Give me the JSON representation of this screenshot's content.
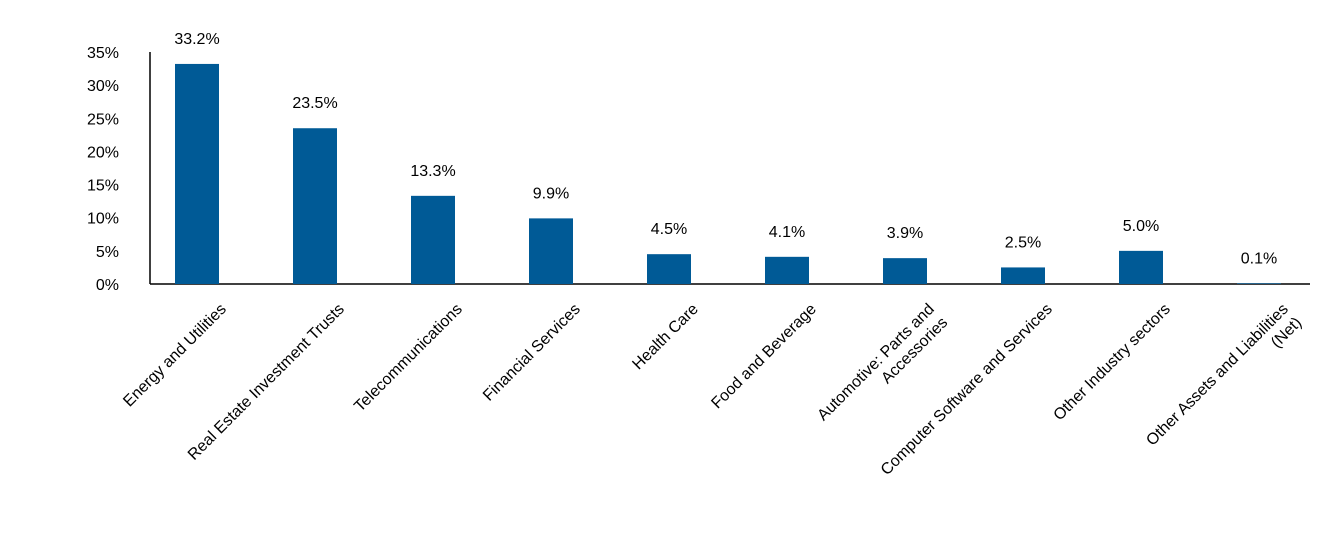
{
  "chart_data": {
    "type": "bar",
    "title": "",
    "xlabel": "",
    "ylabel": "",
    "ylim": [
      0,
      35
    ],
    "y_ticks": [
      "0%",
      "5%",
      "10%",
      "15%",
      "20%",
      "25%",
      "30%",
      "35%"
    ],
    "y_tick_values": [
      0,
      5,
      10,
      15,
      20,
      25,
      30,
      35
    ],
    "grid": false,
    "bar_color": "#005A96",
    "categories": [
      [
        "Energy and Utilities"
      ],
      [
        "Real Estate Investment Trusts"
      ],
      [
        "Telecommunications"
      ],
      [
        "Financial Services"
      ],
      [
        "Health Care"
      ],
      [
        "Food and Beverage"
      ],
      [
        "Automotive: Parts and",
        "Accessories"
      ],
      [
        "Computer Software and Services"
      ],
      [
        "Other Industry sectors"
      ],
      [
        "Other Assets and Liabilities",
        "(Net)"
      ]
    ],
    "values": [
      33.2,
      23.5,
      13.3,
      9.9,
      4.5,
      4.1,
      3.9,
      2.5,
      5.0,
      0.1
    ],
    "data_labels": [
      "33.2%",
      "23.5%",
      "13.3%",
      "9.9%",
      "4.5%",
      "4.1%",
      "3.9%",
      "2.5%",
      "5.0%",
      "0.1%"
    ]
  }
}
